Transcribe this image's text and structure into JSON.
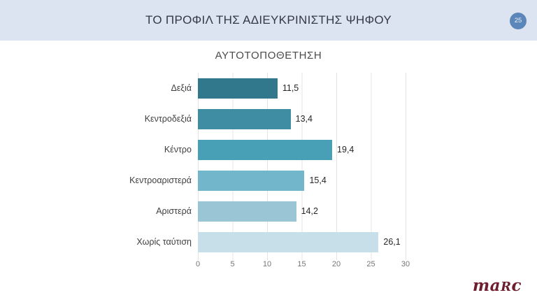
{
  "header": {
    "title": "ΤΟ ΠΡΟΦΙΛ ΤΗΣ ΑΔΙΕΥΚΡΙΝΙΣΤΗΣ ΨΗΦΟΥ",
    "page_number": "25",
    "background_color": "#dbe4f0",
    "badge_color": "#5b86ba"
  },
  "chart_data": {
    "type": "bar",
    "orientation": "horizontal",
    "title": "ΑΥΤΟΤΟΠΟΘΕΤΗΣΗ",
    "categories": [
      "Δεξιά",
      "Κεντροδεξιά",
      "Κέντρο",
      "Κεντροαριστερά",
      "Αριστερά",
      "Χωρίς ταύτιση"
    ],
    "values": [
      11.5,
      13.4,
      19.4,
      15.4,
      14.2,
      26.1
    ],
    "value_labels": [
      "11,5",
      "13,4",
      "19,4",
      "15,4",
      "14,2",
      "26,1"
    ],
    "bar_colors": [
      "#31788d",
      "#3e8da3",
      "#47a0b5",
      "#71b6ca",
      "#99c5d5",
      "#c6dfe9"
    ],
    "x_ticks": [
      "0",
      "5",
      "10",
      "15",
      "20",
      "25",
      "30"
    ],
    "xlim": [
      0,
      30
    ],
    "grid": "vertical-light-gray",
    "legend": false,
    "xlabel": "",
    "ylabel": ""
  },
  "footer": {
    "logo_part1": "ma",
    "logo_part2": "R",
    "logo_part3": "c",
    "logo_color": "#6e1e2c"
  }
}
